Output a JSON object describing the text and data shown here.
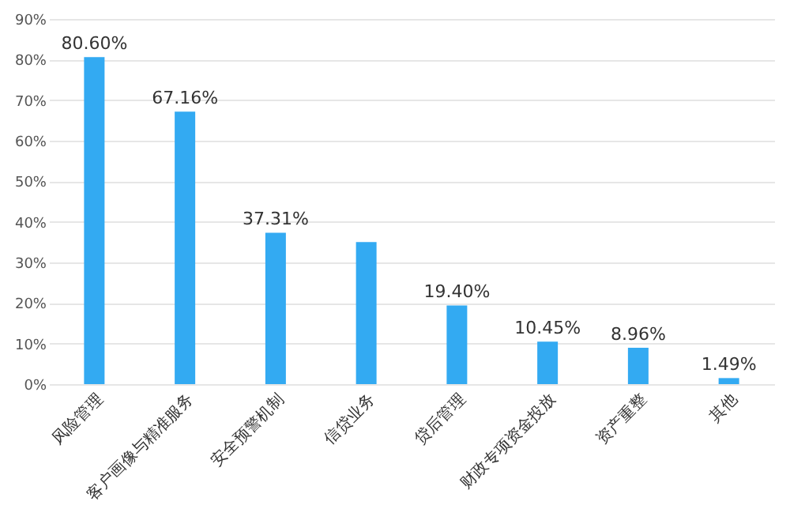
{
  "chart_data": {
    "type": "bar",
    "categories": [
      "风险管理",
      "客户画像与精准服务",
      "安全预警机制",
      "信贷业务",
      "贷后管理",
      "财政专项资金投放",
      "资产重整",
      "其他"
    ],
    "values": [
      80.6,
      67.16,
      37.31,
      35,
      19.4,
      10.45,
      8.96,
      1.49
    ],
    "value_labels": [
      "80.60%",
      "67.16%",
      "37.31%",
      null,
      "19.40%",
      "10.45%",
      "8.96%",
      "1.49%"
    ],
    "color": "#33aaf2",
    "ylim": [
      0,
      90
    ],
    "yticks": [
      {
        "value": 0,
        "label": "0%"
      },
      {
        "value": 10,
        "label": "10%"
      },
      {
        "value": 20,
        "label": "20%"
      },
      {
        "value": 30,
        "label": "30%"
      },
      {
        "value": 40,
        "label": "40%"
      },
      {
        "value": 50,
        "label": "50%"
      },
      {
        "value": 60,
        "label": "60%"
      },
      {
        "value": 70,
        "label": "70%"
      },
      {
        "value": 80,
        "label": "80%"
      },
      {
        "value": 90,
        "label": "90%"
      }
    ],
    "grid": "y"
  }
}
